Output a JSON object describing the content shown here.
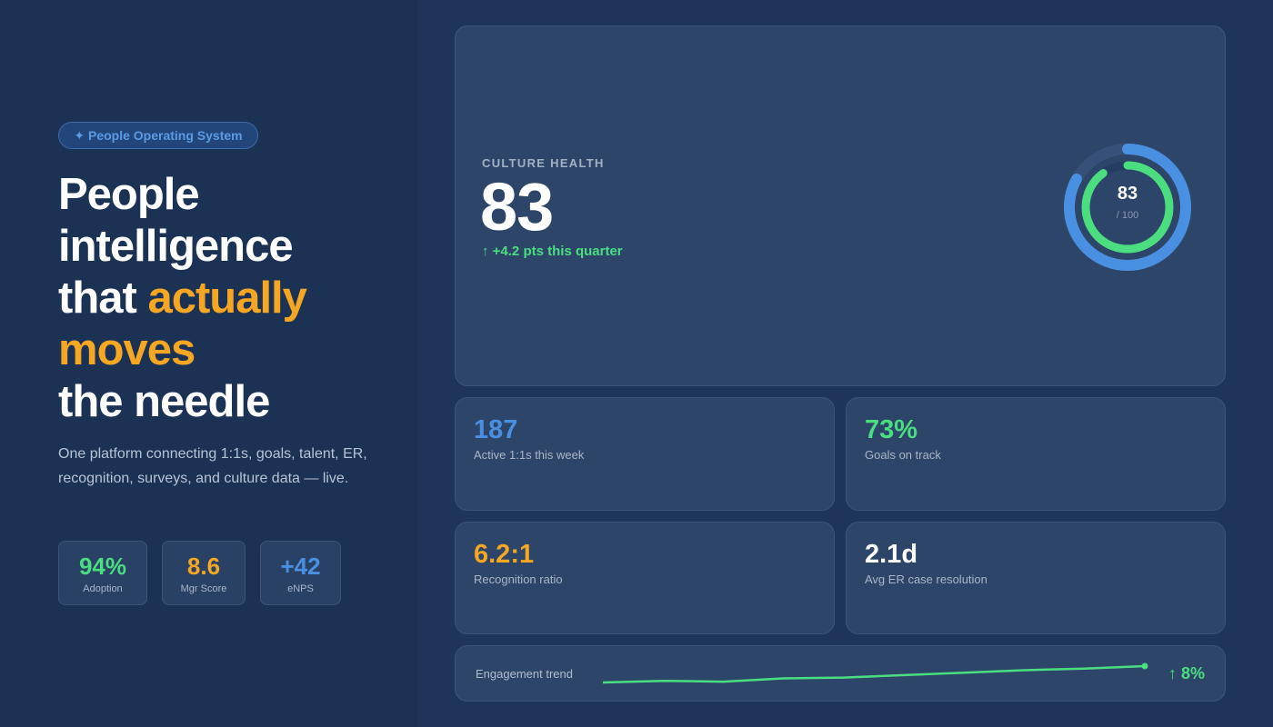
{
  "hero_left": {
    "badge": "✦ People Operating System",
    "headline_line1": "People",
    "headline_line2": "intelligence",
    "headline_line3_a": "that ",
    "headline_line3_b": "actually",
    "headline_line4": "moves",
    "headline_line5": "the needle",
    "subtitle": "One platform connecting 1:1s, goals, talent, ER, recognition, surveys, and culture data — live.",
    "mini_stats": [
      {
        "value": "94%",
        "label": "Adoption",
        "color": "#4ade80"
      },
      {
        "value": "8.6",
        "label": "Mgr Score",
        "color": "#f5a623"
      },
      {
        "value": "+42",
        "label": "eNPS",
        "color": "#4a90e2"
      }
    ]
  },
  "culture_health": {
    "label": "CULTURE HEALTH",
    "value": "83",
    "delta": "↑ +4.2 pts this quarter",
    "gauge_value": "83",
    "gauge_max": "/ 100",
    "gauge_fraction": 0.83,
    "inner_fraction": 0.9
  },
  "stats": [
    {
      "value": "187",
      "label": "Active 1:1s this week",
      "color": "#4a90e2"
    },
    {
      "value": "73%",
      "label": "Goals on track",
      "color": "#4ade80"
    },
    {
      "value": "6.2:1",
      "label": "Recognition ratio",
      "color": "#f5a623"
    },
    {
      "value": "2.1d",
      "label": "Avg ER case resolution",
      "color": "#ffffff"
    }
  ],
  "engagement": {
    "label": "Engagement trend",
    "change": "↑ 8%",
    "points": [
      2,
      4,
      3,
      7,
      8,
      11,
      14,
      17,
      19,
      22
    ]
  },
  "colors": {
    "accent_green": "#4ade80",
    "accent_blue": "#4a90e2",
    "accent_orange": "#f5a623"
  }
}
